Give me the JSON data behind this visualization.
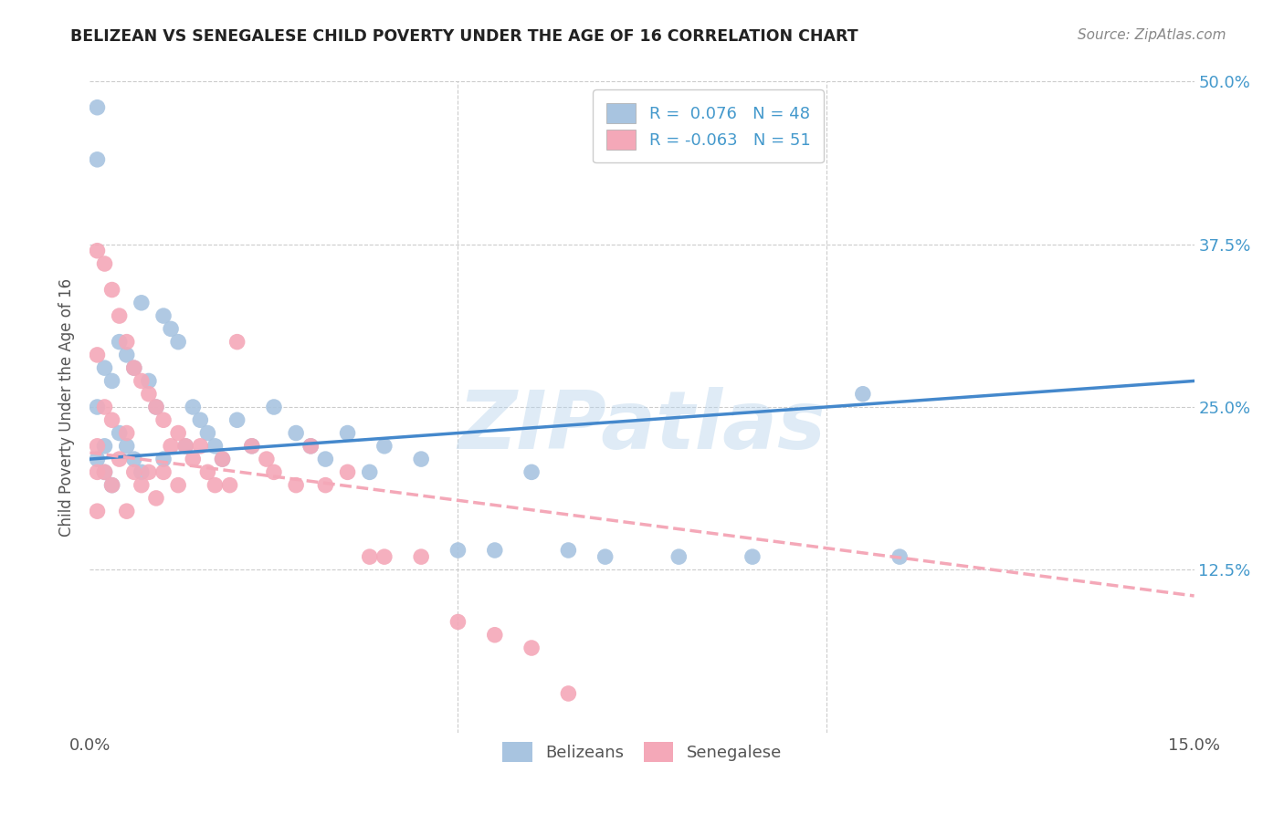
{
  "title": "BELIZEAN VS SENEGALESE CHILD POVERTY UNDER THE AGE OF 16 CORRELATION CHART",
  "source": "Source: ZipAtlas.com",
  "ylabel": "Child Poverty Under the Age of 16",
  "xlim": [
    0.0,
    0.15
  ],
  "ylim": [
    0.0,
    0.5
  ],
  "watermark_text": "ZIPatlas",
  "belizean_color": "#a8c4e0",
  "senegalese_color": "#f4a8b8",
  "belizean_line_color": "#4488cc",
  "senegalese_line_color": "#f4a8b8",
  "belizean_R": 0.076,
  "belizean_N": 48,
  "senegalese_R": -0.063,
  "senegalese_N": 51,
  "belizean_line_x0": 0.0,
  "belizean_line_x1": 0.15,
  "belizean_line_y0": 0.21,
  "belizean_line_y1": 0.27,
  "senegalese_line_x0": 0.0,
  "senegalese_line_x1": 0.15,
  "senegalese_line_y0": 0.215,
  "senegalese_line_y1": 0.105,
  "background_color": "#ffffff",
  "grid_color": "#cccccc",
  "title_color": "#222222",
  "axis_label_color": "#555555",
  "tick_label_color": "#4499cc",
  "xtick_positions": [
    0.0,
    0.05,
    0.1,
    0.15
  ],
  "xtick_labels": [
    "0.0%",
    "",
    "",
    "15.0%"
  ],
  "ytick_positions": [
    0.0,
    0.125,
    0.25,
    0.375,
    0.5
  ],
  "ytick_labels": [
    "",
    "12.5%",
    "25.0%",
    "37.5%",
    "50.0%"
  ],
  "belizean_x": [
    0.001,
    0.001,
    0.001,
    0.001,
    0.002,
    0.002,
    0.002,
    0.003,
    0.003,
    0.004,
    0.004,
    0.005,
    0.005,
    0.006,
    0.006,
    0.007,
    0.007,
    0.008,
    0.009,
    0.01,
    0.01,
    0.011,
    0.012,
    0.013,
    0.014,
    0.015,
    0.016,
    0.017,
    0.018,
    0.02,
    0.022,
    0.025,
    0.028,
    0.03,
    0.032,
    0.035,
    0.038,
    0.04,
    0.045,
    0.05,
    0.055,
    0.06,
    0.065,
    0.07,
    0.08,
    0.09,
    0.105,
    0.11
  ],
  "belizean_y": [
    0.48,
    0.44,
    0.25,
    0.21,
    0.28,
    0.22,
    0.2,
    0.27,
    0.19,
    0.3,
    0.23,
    0.29,
    0.22,
    0.28,
    0.21,
    0.33,
    0.2,
    0.27,
    0.25,
    0.32,
    0.21,
    0.31,
    0.3,
    0.22,
    0.25,
    0.24,
    0.23,
    0.22,
    0.21,
    0.24,
    0.22,
    0.25,
    0.23,
    0.22,
    0.21,
    0.23,
    0.2,
    0.22,
    0.21,
    0.14,
    0.14,
    0.2,
    0.14,
    0.135,
    0.135,
    0.135,
    0.26,
    0.135
  ],
  "senegalese_x": [
    0.001,
    0.001,
    0.001,
    0.001,
    0.001,
    0.002,
    0.002,
    0.002,
    0.003,
    0.003,
    0.003,
    0.004,
    0.004,
    0.005,
    0.005,
    0.005,
    0.006,
    0.006,
    0.007,
    0.007,
    0.008,
    0.008,
    0.009,
    0.009,
    0.01,
    0.01,
    0.011,
    0.012,
    0.012,
    0.013,
    0.014,
    0.015,
    0.016,
    0.017,
    0.018,
    0.019,
    0.02,
    0.022,
    0.024,
    0.025,
    0.028,
    0.03,
    0.032,
    0.035,
    0.038,
    0.04,
    0.045,
    0.05,
    0.055,
    0.06,
    0.065
  ],
  "senegalese_y": [
    0.37,
    0.29,
    0.22,
    0.2,
    0.17,
    0.36,
    0.25,
    0.2,
    0.34,
    0.24,
    0.19,
    0.32,
    0.21,
    0.3,
    0.23,
    0.17,
    0.28,
    0.2,
    0.27,
    0.19,
    0.26,
    0.2,
    0.25,
    0.18,
    0.24,
    0.2,
    0.22,
    0.23,
    0.19,
    0.22,
    0.21,
    0.22,
    0.2,
    0.19,
    0.21,
    0.19,
    0.3,
    0.22,
    0.21,
    0.2,
    0.19,
    0.22,
    0.19,
    0.2,
    0.135,
    0.135,
    0.135,
    0.085,
    0.075,
    0.065,
    0.03
  ]
}
